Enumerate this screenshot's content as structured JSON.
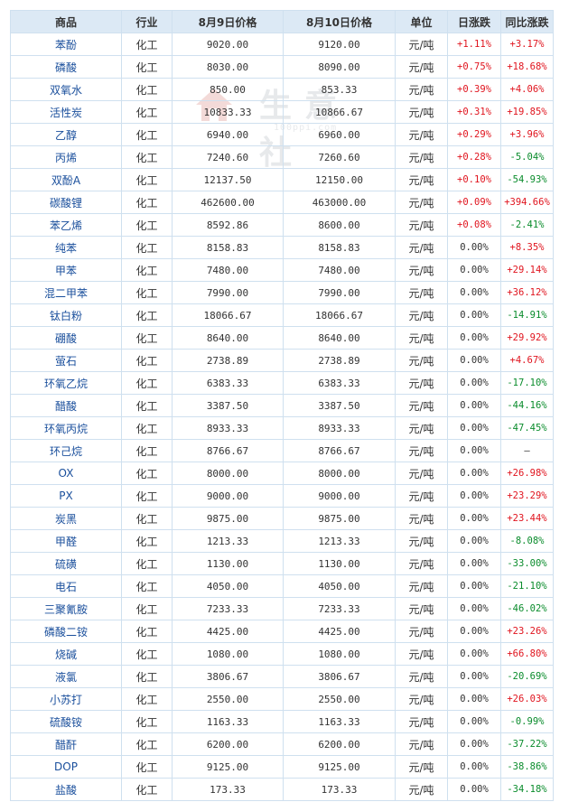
{
  "header": {
    "name": "商品",
    "industry": "行业",
    "price_prev": "8月9日价格",
    "price_curr": "8月10日价格",
    "unit": "单位",
    "day_change": "日涨跌",
    "yoy_change": "同比涨跌"
  },
  "watermark": {
    "logo_text": "生意社",
    "url_text": "100ppi.com"
  },
  "rows": [
    {
      "name": "苯酚",
      "industry": "化工",
      "prev": "9020.00",
      "curr": "9120.00",
      "unit": "元/吨",
      "day": "+1.11%",
      "yoy": "+3.17%",
      "day_dir": "up",
      "yoy_dir": "up"
    },
    {
      "name": "磷酸",
      "industry": "化工",
      "prev": "8030.00",
      "curr": "8090.00",
      "unit": "元/吨",
      "day": "+0.75%",
      "yoy": "+18.68%",
      "day_dir": "up",
      "yoy_dir": "up"
    },
    {
      "name": "双氧水",
      "industry": "化工",
      "prev": "850.00",
      "curr": "853.33",
      "unit": "元/吨",
      "day": "+0.39%",
      "yoy": "+4.06%",
      "day_dir": "up",
      "yoy_dir": "up"
    },
    {
      "name": "活性炭",
      "industry": "化工",
      "prev": "10833.33",
      "curr": "10866.67",
      "unit": "元/吨",
      "day": "+0.31%",
      "yoy": "+19.85%",
      "day_dir": "up",
      "yoy_dir": "up"
    },
    {
      "name": "乙醇",
      "industry": "化工",
      "prev": "6940.00",
      "curr": "6960.00",
      "unit": "元/吨",
      "day": "+0.29%",
      "yoy": "+3.96%",
      "day_dir": "up",
      "yoy_dir": "up"
    },
    {
      "name": "丙烯",
      "industry": "化工",
      "prev": "7240.60",
      "curr": "7260.60",
      "unit": "元/吨",
      "day": "+0.28%",
      "yoy": "-5.04%",
      "day_dir": "up",
      "yoy_dir": "down"
    },
    {
      "name": "双酚A",
      "industry": "化工",
      "prev": "12137.50",
      "curr": "12150.00",
      "unit": "元/吨",
      "day": "+0.10%",
      "yoy": "-54.93%",
      "day_dir": "up",
      "yoy_dir": "down"
    },
    {
      "name": "碳酸锂",
      "industry": "化工",
      "prev": "462600.00",
      "curr": "463000.00",
      "unit": "元/吨",
      "day": "+0.09%",
      "yoy": "+394.66%",
      "day_dir": "up",
      "yoy_dir": "up"
    },
    {
      "name": "苯乙烯",
      "industry": "化工",
      "prev": "8592.86",
      "curr": "8600.00",
      "unit": "元/吨",
      "day": "+0.08%",
      "yoy": "-2.41%",
      "day_dir": "up",
      "yoy_dir": "down"
    },
    {
      "name": "纯苯",
      "industry": "化工",
      "prev": "8158.83",
      "curr": "8158.83",
      "unit": "元/吨",
      "day": "0.00%",
      "yoy": "+8.35%",
      "day_dir": "flat",
      "yoy_dir": "up"
    },
    {
      "name": "甲苯",
      "industry": "化工",
      "prev": "7480.00",
      "curr": "7480.00",
      "unit": "元/吨",
      "day": "0.00%",
      "yoy": "+29.14%",
      "day_dir": "flat",
      "yoy_dir": "up"
    },
    {
      "name": "混二甲苯",
      "industry": "化工",
      "prev": "7990.00",
      "curr": "7990.00",
      "unit": "元/吨",
      "day": "0.00%",
      "yoy": "+36.12%",
      "day_dir": "flat",
      "yoy_dir": "up"
    },
    {
      "name": "钛白粉",
      "industry": "化工",
      "prev": "18066.67",
      "curr": "18066.67",
      "unit": "元/吨",
      "day": "0.00%",
      "yoy": "-14.91%",
      "day_dir": "flat",
      "yoy_dir": "down"
    },
    {
      "name": "硼酸",
      "industry": "化工",
      "prev": "8640.00",
      "curr": "8640.00",
      "unit": "元/吨",
      "day": "0.00%",
      "yoy": "+29.92%",
      "day_dir": "flat",
      "yoy_dir": "up"
    },
    {
      "name": "萤石",
      "industry": "化工",
      "prev": "2738.89",
      "curr": "2738.89",
      "unit": "元/吨",
      "day": "0.00%",
      "yoy": "+4.67%",
      "day_dir": "flat",
      "yoy_dir": "up"
    },
    {
      "name": "环氧乙烷",
      "industry": "化工",
      "prev": "6383.33",
      "curr": "6383.33",
      "unit": "元/吨",
      "day": "0.00%",
      "yoy": "-17.10%",
      "day_dir": "flat",
      "yoy_dir": "down"
    },
    {
      "name": "醋酸",
      "industry": "化工",
      "prev": "3387.50",
      "curr": "3387.50",
      "unit": "元/吨",
      "day": "0.00%",
      "yoy": "-44.16%",
      "day_dir": "flat",
      "yoy_dir": "down"
    },
    {
      "name": "环氧丙烷",
      "industry": "化工",
      "prev": "8933.33",
      "curr": "8933.33",
      "unit": "元/吨",
      "day": "0.00%",
      "yoy": "-47.45%",
      "day_dir": "flat",
      "yoy_dir": "down"
    },
    {
      "name": "环己烷",
      "industry": "化工",
      "prev": "8766.67",
      "curr": "8766.67",
      "unit": "元/吨",
      "day": "0.00%",
      "yoy": "—",
      "day_dir": "flat",
      "yoy_dir": "flat"
    },
    {
      "name": "OX",
      "industry": "化工",
      "prev": "8000.00",
      "curr": "8000.00",
      "unit": "元/吨",
      "day": "0.00%",
      "yoy": "+26.98%",
      "day_dir": "flat",
      "yoy_dir": "up"
    },
    {
      "name": "PX",
      "industry": "化工",
      "prev": "9000.00",
      "curr": "9000.00",
      "unit": "元/吨",
      "day": "0.00%",
      "yoy": "+23.29%",
      "day_dir": "flat",
      "yoy_dir": "up"
    },
    {
      "name": "炭黑",
      "industry": "化工",
      "prev": "9875.00",
      "curr": "9875.00",
      "unit": "元/吨",
      "day": "0.00%",
      "yoy": "+23.44%",
      "day_dir": "flat",
      "yoy_dir": "up"
    },
    {
      "name": "甲醛",
      "industry": "化工",
      "prev": "1213.33",
      "curr": "1213.33",
      "unit": "元/吨",
      "day": "0.00%",
      "yoy": "-8.08%",
      "day_dir": "flat",
      "yoy_dir": "down"
    },
    {
      "name": "硫磺",
      "industry": "化工",
      "prev": "1130.00",
      "curr": "1130.00",
      "unit": "元/吨",
      "day": "0.00%",
      "yoy": "-33.00%",
      "day_dir": "flat",
      "yoy_dir": "down"
    },
    {
      "name": "电石",
      "industry": "化工",
      "prev": "4050.00",
      "curr": "4050.00",
      "unit": "元/吨",
      "day": "0.00%",
      "yoy": "-21.10%",
      "day_dir": "flat",
      "yoy_dir": "down"
    },
    {
      "name": "三聚氰胺",
      "industry": "化工",
      "prev": "7233.33",
      "curr": "7233.33",
      "unit": "元/吨",
      "day": "0.00%",
      "yoy": "-46.02%",
      "day_dir": "flat",
      "yoy_dir": "down"
    },
    {
      "name": "磷酸二铵",
      "industry": "化工",
      "prev": "4425.00",
      "curr": "4425.00",
      "unit": "元/吨",
      "day": "0.00%",
      "yoy": "+23.26%",
      "day_dir": "flat",
      "yoy_dir": "up"
    },
    {
      "name": "烧碱",
      "industry": "化工",
      "prev": "1080.00",
      "curr": "1080.00",
      "unit": "元/吨",
      "day": "0.00%",
      "yoy": "+66.80%",
      "day_dir": "flat",
      "yoy_dir": "up"
    },
    {
      "name": "液氯",
      "industry": "化工",
      "prev": "3806.67",
      "curr": "3806.67",
      "unit": "元/吨",
      "day": "0.00%",
      "yoy": "-20.69%",
      "day_dir": "flat",
      "yoy_dir": "down"
    },
    {
      "name": "小苏打",
      "industry": "化工",
      "prev": "2550.00",
      "curr": "2550.00",
      "unit": "元/吨",
      "day": "0.00%",
      "yoy": "+26.03%",
      "day_dir": "flat",
      "yoy_dir": "up"
    },
    {
      "name": "硫酸铵",
      "industry": "化工",
      "prev": "1163.33",
      "curr": "1163.33",
      "unit": "元/吨",
      "day": "0.00%",
      "yoy": "-0.99%",
      "day_dir": "flat",
      "yoy_dir": "down"
    },
    {
      "name": "醋酐",
      "industry": "化工",
      "prev": "6200.00",
      "curr": "6200.00",
      "unit": "元/吨",
      "day": "0.00%",
      "yoy": "-37.22%",
      "day_dir": "flat",
      "yoy_dir": "down"
    },
    {
      "name": "DOP",
      "industry": "化工",
      "prev": "9125.00",
      "curr": "9125.00",
      "unit": "元/吨",
      "day": "0.00%",
      "yoy": "-38.86%",
      "day_dir": "flat",
      "yoy_dir": "down"
    },
    {
      "name": "盐酸",
      "industry": "化工",
      "prev": "173.33",
      "curr": "173.33",
      "unit": "元/吨",
      "day": "0.00%",
      "yoy": "-34.18%",
      "day_dir": "flat",
      "yoy_dir": "down"
    }
  ],
  "colors": {
    "header_bg": "#dce9f5",
    "border": "#cfe0ef",
    "name_link": "#1a4f9c",
    "up": "#e0141e",
    "down": "#0a8c2c"
  }
}
